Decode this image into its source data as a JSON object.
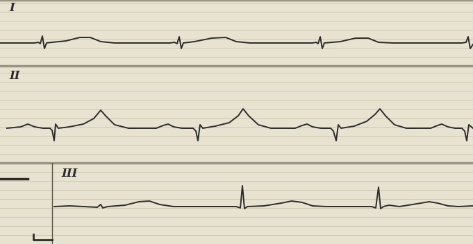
{
  "chart_data": [
    {
      "type": "line",
      "title": "I",
      "color": "#2b2b2b",
      "tick_labels": false,
      "xlim": [
        0,
        681
      ],
      "ylim": [
        -33,
        62
      ],
      "x": [
        0,
        50,
        55,
        58,
        61,
        64,
        67,
        75,
        95,
        115,
        130,
        145,
        165,
        245,
        251,
        255,
        258,
        261,
        264,
        280,
        305,
        325,
        340,
        360,
        450,
        455,
        458,
        461,
        464,
        467,
        490,
        512,
        530,
        545,
        565,
        665,
        671,
        674,
        677,
        681
      ],
      "values": [
        0,
        0,
        1,
        -1,
        10,
        -8,
        0,
        1,
        3,
        8,
        8,
        2,
        0,
        0,
        1,
        -1,
        9,
        -8,
        0,
        2,
        7,
        8,
        2,
        0,
        0,
        1,
        -1,
        9,
        -8,
        0,
        2,
        7,
        7,
        1,
        0,
        0,
        1,
        9,
        -8,
        -2
      ]
    },
    {
      "type": "line",
      "title": "II",
      "color": "#2b2b2b",
      "tick_labels": false,
      "xlim": [
        0,
        681
      ],
      "ylim": [
        -50,
        90
      ],
      "x": [
        10,
        30,
        40,
        50,
        62,
        72,
        75,
        78,
        80,
        84,
        100,
        120,
        135,
        145,
        152,
        165,
        185,
        225,
        235,
        242,
        250,
        262,
        278,
        282,
        285,
        288,
        292,
        310,
        330,
        343,
        350,
        358,
        372,
        390,
        425,
        435,
        442,
        450,
        462,
        476,
        480,
        484,
        487,
        491,
        510,
        528,
        540,
        547,
        555,
        568,
        585,
        620,
        630,
        636,
        645,
        655,
        665,
        669,
        672,
        675,
        681
      ],
      "values": [
        0,
        2,
        6,
        2,
        0,
        0,
        -3,
        -18,
        6,
        0,
        2,
        6,
        14,
        26,
        18,
        5,
        0,
        0,
        4,
        6,
        2,
        0,
        0,
        -4,
        -18,
        5,
        0,
        3,
        8,
        18,
        28,
        18,
        5,
        0,
        0,
        4,
        6,
        2,
        0,
        0,
        -4,
        -18,
        5,
        0,
        3,
        10,
        20,
        28,
        18,
        5,
        0,
        0,
        4,
        6,
        2,
        0,
        0,
        -4,
        -18,
        5,
        0
      ]
    },
    {
      "type": "line",
      "title": "III",
      "color": "#2b2b2b",
      "tick_labels": false,
      "xlim": [
        0,
        681
      ],
      "ylim": [
        -54,
        63
      ],
      "x": [
        78,
        100,
        120,
        140,
        145,
        148,
        155,
        180,
        200,
        215,
        230,
        250,
        300,
        340,
        346,
        349,
        352,
        356,
        380,
        405,
        420,
        435,
        450,
        470,
        535,
        541,
        545,
        548,
        552,
        560,
        575,
        600,
        618,
        630,
        645,
        660,
        681
      ],
      "values": [
        0,
        1,
        0,
        -1,
        3,
        -2,
        0,
        2,
        7,
        8,
        3,
        0,
        0,
        0,
        -2,
        30,
        -3,
        0,
        1,
        5,
        8,
        6,
        1,
        0,
        0,
        -2,
        28,
        -3,
        0,
        2,
        0,
        4,
        7,
        5,
        1,
        0,
        1
      ]
    }
  ]
}
